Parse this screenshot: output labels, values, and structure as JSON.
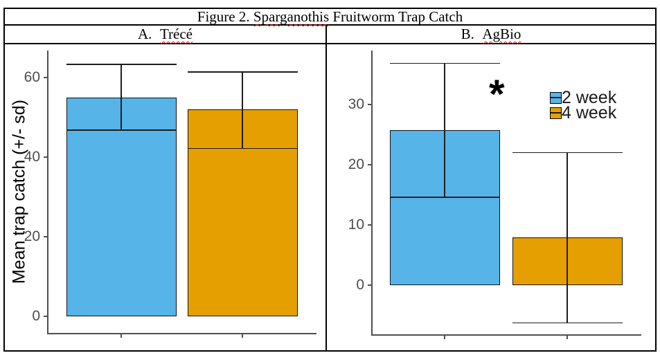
{
  "figure": {
    "title": {
      "prefix": "Figure 2.",
      "misspelled_word": "Sparganothis",
      "suffix": "Fruitworm Trap Catch"
    },
    "panels": [
      {
        "index_label": "A.",
        "name": "Trécé"
      },
      {
        "index_label": "B.",
        "name": "AgBio"
      }
    ]
  },
  "colors": {
    "series_2_week": "#56B4E9",
    "series_4_week": "#E69F00",
    "axis": "#4f4f4f",
    "tick_label": "#4d4d4d",
    "spellcheck_squiggle": "#d22222"
  },
  "chart_data": [
    {
      "type": "bar",
      "title": "A. Trécé",
      "categories": [
        "2 week",
        "4 week"
      ],
      "values": [
        55,
        52
      ],
      "sd": [
        8.3,
        9.6
      ],
      "error_upper": [
        63.4,
        61.5
      ],
      "error_lower": [
        46.9,
        42.3
      ],
      "bar_colors": [
        "#56B4E9",
        "#E69F00"
      ],
      "ylabel": "Mean trap catch (+/- sd)",
      "xlabel": "",
      "yticks": [
        0,
        20,
        40,
        60
      ],
      "ylim": [
        -4.2,
        66.8
      ],
      "grid": "off",
      "legend": null,
      "annotation": null
    },
    {
      "type": "bar",
      "title": "B. AgBio",
      "categories": [
        "2 week",
        "4 week"
      ],
      "values": [
        25.8,
        7.9
      ],
      "sd": [
        11.1,
        14.2
      ],
      "error_upper": [
        36.9,
        22.1
      ],
      "error_lower": [
        14.7,
        -6.2
      ],
      "bar_colors": [
        "#56B4E9",
        "#E69F00"
      ],
      "ylabel": "",
      "xlabel": "",
      "yticks": [
        0,
        10,
        20,
        30
      ],
      "ylim": [
        -8.2,
        39
      ],
      "grid": "off",
      "annotation": "*",
      "legend": {
        "position": "upper right",
        "items": [
          {
            "label": "2 week",
            "color": "#56B4E9"
          },
          {
            "label": "4 week",
            "color": "#E69F00"
          }
        ]
      }
    }
  ]
}
